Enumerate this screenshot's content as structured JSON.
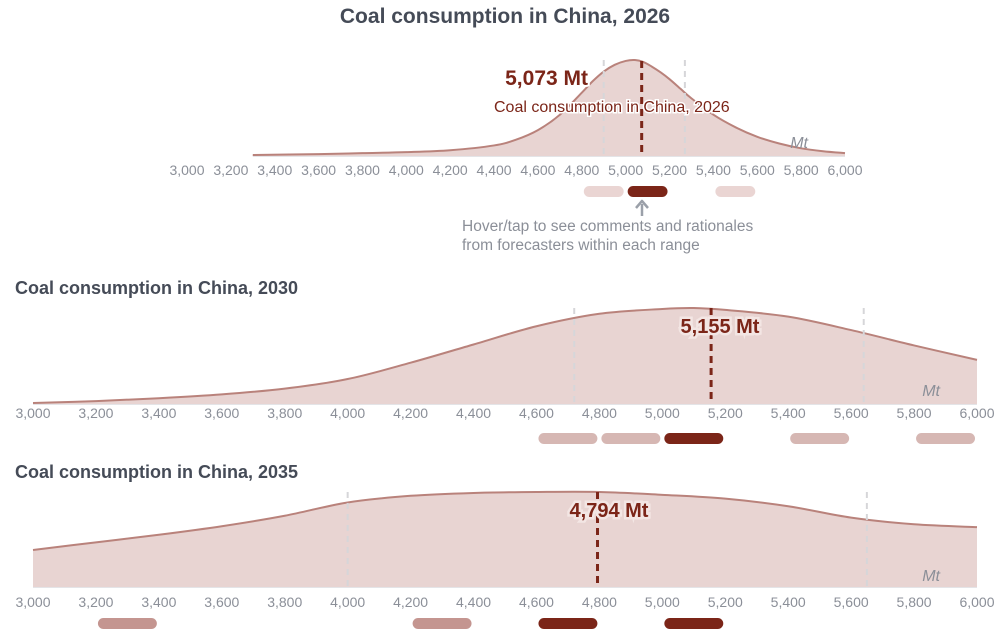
{
  "chart_data": [
    {
      "type": "area",
      "title": "Coal consumption in China, 2026",
      "unit": "Mt",
      "median_label": "5,073 Mt",
      "median_sublabel": "Coal consumption in China, 2026",
      "median": 5073,
      "quartiles": [
        4900,
        5270
      ],
      "xlim": [
        3000,
        6000
      ],
      "x_ticks": [
        "3,000",
        "3,200",
        "3,400",
        "3,600",
        "3,800",
        "4,000",
        "4,200",
        "4,400",
        "4,600",
        "4,800",
        "5,000",
        "5,200",
        "5,400",
        "5,600",
        "5,800",
        "6,000"
      ],
      "density": {
        "x": [
          3300,
          3600,
          3800,
          4000,
          4200,
          4400,
          4500,
          4600,
          4700,
          4800,
          4850,
          4900,
          4950,
          5000,
          5040,
          5080,
          5120,
          5160,
          5200,
          5250,
          5300,
          5400,
          5500,
          5600,
          5700,
          5800,
          5900,
          6000
        ],
        "y": [
          0.01,
          0.02,
          0.03,
          0.04,
          0.06,
          0.11,
          0.17,
          0.27,
          0.43,
          0.66,
          0.78,
          0.88,
          0.95,
          0.99,
          1.0,
          0.98,
          0.93,
          0.87,
          0.8,
          0.7,
          0.6,
          0.43,
          0.3,
          0.2,
          0.13,
          0.08,
          0.05,
          0.03
        ]
      },
      "range_bins": [
        {
          "from": 4800,
          "to": 5000,
          "emphasis": "light"
        },
        {
          "from": 5000,
          "to": 5200,
          "emphasis": "selected"
        },
        {
          "from": 5400,
          "to": 5600,
          "emphasis": "light"
        }
      ]
    },
    {
      "type": "area",
      "title": "Coal consumption in China, 2030",
      "unit": "Mt",
      "median_label": "5,155 Mt",
      "median": 5155,
      "quartiles": [
        4720,
        5640
      ],
      "xlim": [
        3000,
        6000
      ],
      "x_ticks": [
        "3,000",
        "3,200",
        "3,400",
        "3,600",
        "3,800",
        "4,000",
        "4,200",
        "4,400",
        "4,600",
        "4,800",
        "5,000",
        "5,200",
        "5,400",
        "5,600",
        "5,800",
        "6,000"
      ],
      "density": {
        "x": [
          3000,
          3200,
          3400,
          3600,
          3800,
          4000,
          4200,
          4400,
          4600,
          4800,
          5000,
          5100,
          5200,
          5400,
          5600,
          5800,
          6000
        ],
        "y": [
          0.01,
          0.03,
          0.06,
          0.1,
          0.16,
          0.26,
          0.43,
          0.62,
          0.81,
          0.94,
          0.99,
          1.0,
          0.98,
          0.91,
          0.77,
          0.61,
          0.46
        ]
      },
      "range_bins": [
        {
          "from": 4600,
          "to": 4800,
          "emphasis": "medium"
        },
        {
          "from": 4800,
          "to": 5000,
          "emphasis": "medium"
        },
        {
          "from": 5000,
          "to": 5200,
          "emphasis": "selected"
        },
        {
          "from": 5400,
          "to": 5600,
          "emphasis": "medium"
        },
        {
          "from": 5800,
          "to": 6000,
          "emphasis": "medium"
        }
      ]
    },
    {
      "type": "area",
      "title": "Coal consumption in China, 2035",
      "unit": "Mt",
      "median_label": "4,794 Mt",
      "median": 4794,
      "quartiles": [
        4000,
        5650
      ],
      "xlim": [
        3000,
        6000
      ],
      "x_ticks": [
        "3,000",
        "3,200",
        "3,400",
        "3,600",
        "3,800",
        "4,000",
        "4,200",
        "4,400",
        "4,600",
        "4,800",
        "5,000",
        "5,200",
        "5,400",
        "5,600",
        "5,800",
        "6,000"
      ],
      "density": {
        "x": [
          3000,
          3200,
          3400,
          3600,
          3800,
          4000,
          4200,
          4400,
          4600,
          4800,
          5000,
          5200,
          5400,
          5600,
          5800,
          6000
        ],
        "y": [
          0.39,
          0.47,
          0.55,
          0.64,
          0.75,
          0.89,
          0.96,
          0.99,
          1.0,
          1.0,
          0.97,
          0.93,
          0.85,
          0.73,
          0.66,
          0.63
        ]
      },
      "range_bins": [
        {
          "from": 3200,
          "to": 3400,
          "emphasis": "strong"
        },
        {
          "from": 4200,
          "to": 4400,
          "emphasis": "strong"
        },
        {
          "from": 4600,
          "to": 4800,
          "emphasis": "selected"
        },
        {
          "from": 5000,
          "to": 5200,
          "emphasis": "selected"
        }
      ]
    }
  ],
  "hint": {
    "line1": "Hover/tap to see comments and rationales",
    "line2": "from forecasters within each range"
  },
  "colors": {
    "fill": "#e8d4d2",
    "stroke": "#b9827b",
    "median": "#7b2518",
    "quartile": "#d6d6d9",
    "axis": "#c8cacf",
    "bin_light": "#ead5d3",
    "bin_medium": "#d6b7b3",
    "bin_strong": "#c49590",
    "bin_selected": "#7b2518",
    "hint_arrow": "#9ba0a9"
  }
}
